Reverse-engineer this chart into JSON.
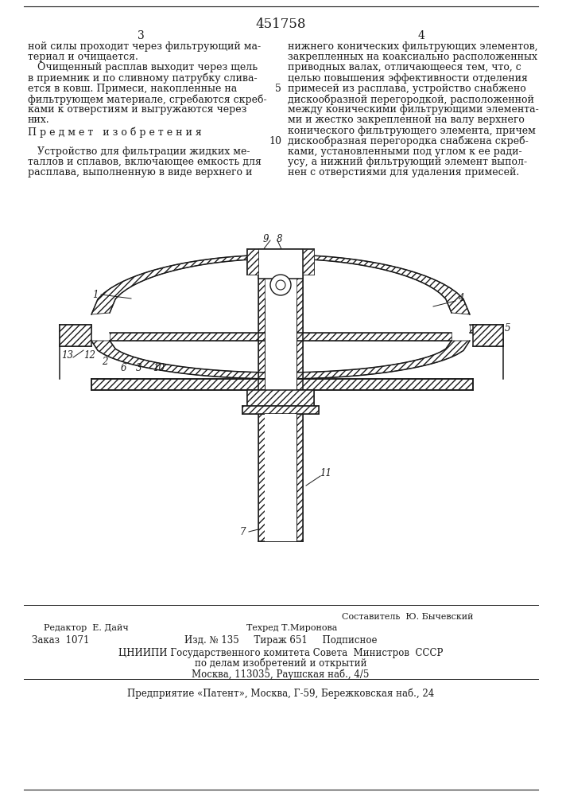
{
  "patent_number": "451758",
  "page_left": "3",
  "page_right": "4",
  "col_left_text": [
    "ной силы проходит через фильтрующий ма-",
    "териал и очищается.",
    "   Очищенный расплав выходит через щель",
    "в приемник и по сливному патрубку слива-",
    "ется в ковш. Примеси, накопленные на",
    "фильтрующем материале, сгребаются скреб-",
    "ками к отверстиям и выгружаются через",
    "них.",
    "П р е д м е т   и з о б р е т е н и я",
    "",
    "   Устройство для фильтрации жидких ме-",
    "таллов и сплавов, включающее емкость для",
    "расплава, выполненную в виде верхнего и"
  ],
  "col_right_text_numbered": [
    {
      "line": "нижнего конических фильтрующих элементов,",
      "num": null
    },
    {
      "line": "закрепленных на коаксиально расположенных",
      "num": null
    },
    {
      "line": "приводных валах, отличающееся тем, что, с",
      "num": null
    },
    {
      "line": "целью повышения эффективности отделения",
      "num": null
    },
    {
      "line": "примесей из расплава, устройство снабжено",
      "num": "5"
    },
    {
      "line": "дискообразной перегородкой, расположенной",
      "num": null
    },
    {
      "line": "между коническими фильтрующими элемента-",
      "num": null
    },
    {
      "line": "ми и жестко закрепленной на валу верхнего",
      "num": null
    },
    {
      "line": "конического фильтрующего элемента, причем",
      "num": null
    },
    {
      "line": "дискообразная перегородка снабжена скреб-",
      "num": "10"
    },
    {
      "line": "ками, установленными под углом к ее ради-",
      "num": null
    },
    {
      "line": "усу, а нижний фильтрующий элемент выпол-",
      "num": null
    },
    {
      "line": "нен с отверстиями для удаления примесей.",
      "num": null
    }
  ],
  "bg_color": "#ffffff",
  "text_color": "#1a1a1a"
}
